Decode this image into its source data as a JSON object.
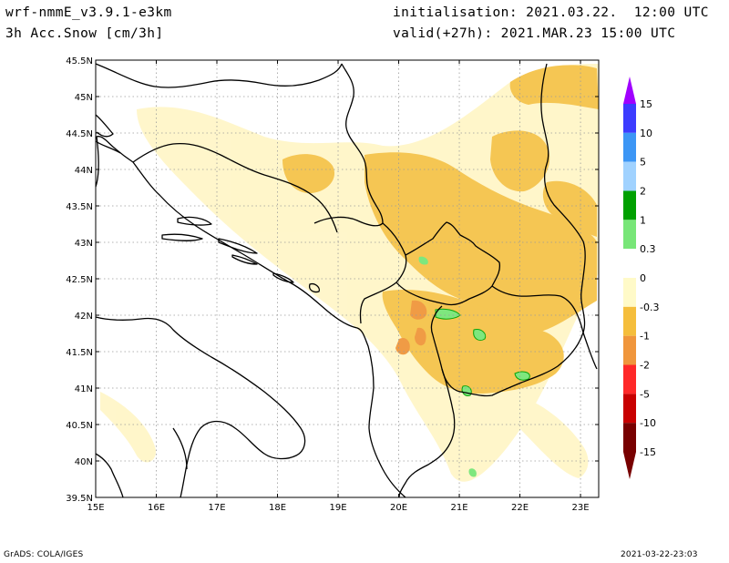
{
  "header": {
    "model": "wrf-nmmE_v3.9.1-e3km",
    "variable": "3h Acc.Snow [cm/3h]",
    "initialisation": "initialisation: 2021.03.22.  12:00 UTC",
    "valid": "valid(+27h): 2021.MAR.23 15:00 UTC"
  },
  "footer": {
    "left": "GrADS: COLA/IGES",
    "right": "2021-03-22-23:03"
  },
  "map": {
    "lon_ticks": [
      "15E",
      "16E",
      "17E",
      "18E",
      "19E",
      "20E",
      "21E",
      "22E",
      "23E"
    ],
    "lat_ticks": [
      "39.5N",
      "40N",
      "40.5N",
      "41N",
      "41.5N",
      "42N",
      "42.5N",
      "43N",
      "43.5N",
      "44N",
      "44.5N",
      "45N",
      "45.5N"
    ],
    "lon_range": [
      15,
      23.3
    ],
    "lat_range": [
      39.5,
      45.5
    ],
    "grid": true,
    "grid_style": "dotted"
  },
  "colorbar": {
    "labels": [
      "15",
      "10",
      "5",
      "2",
      "1",
      "0.3",
      "0",
      "-0.3",
      "-1",
      "-2",
      "-5",
      "-10",
      "-15"
    ],
    "colors": [
      "#a000ff",
      "#3c3cff",
      "#3c96f5",
      "#a0d2ff",
      "#00a000",
      "#78e678",
      "#ffffff",
      "#fffac8",
      "#f5be3c",
      "#f0963c",
      "#ff2828",
      "#c80000",
      "#780000"
    ]
  }
}
